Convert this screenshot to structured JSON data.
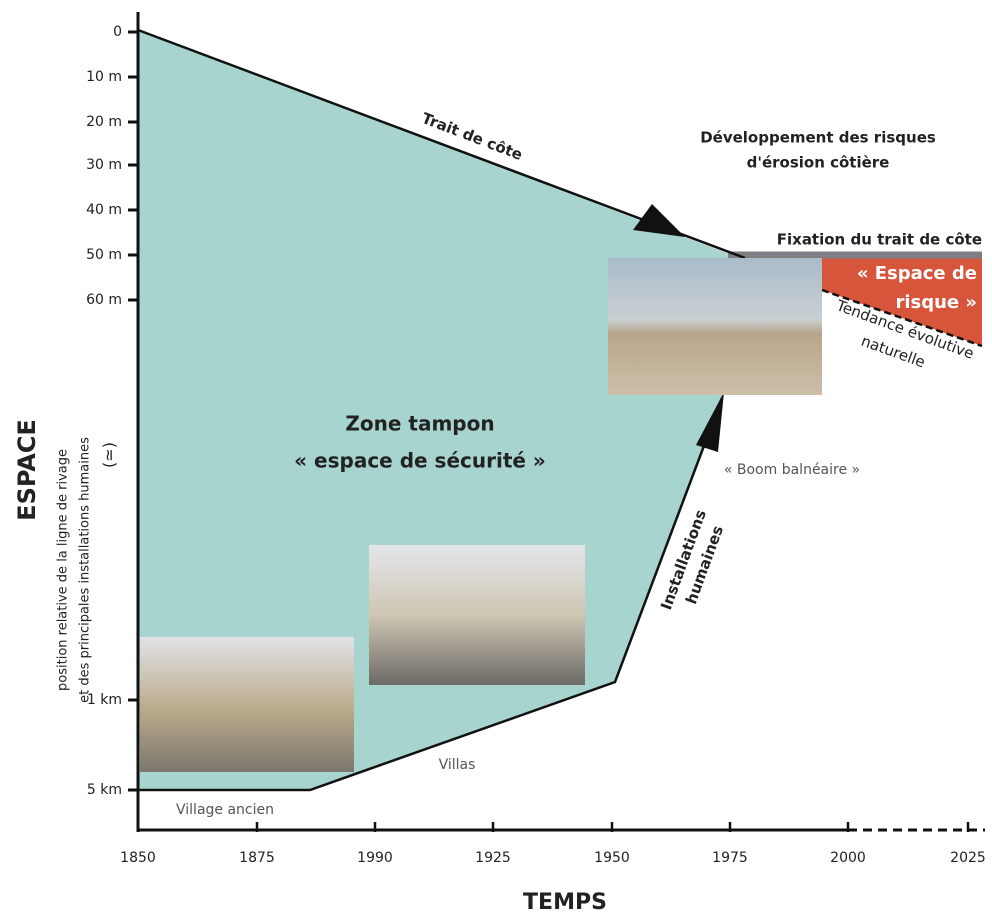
{
  "diagram": {
    "y_axis": {
      "title": "ESPACE",
      "subtitle_lines": [
        "position relative de la ligne de rivage",
        "et des principales installations humaines"
      ],
      "symbol": "(≃)",
      "ticks": [
        "0",
        "10 m",
        "20 m",
        "30 m",
        "40 m",
        "50 m",
        "60 m",
        "1 km",
        "5 km"
      ]
    },
    "x_axis": {
      "title": "TEMPS",
      "ticks": [
        "1850",
        "1875",
        "1990",
        "1925",
        "1950",
        "1975",
        "2000",
        "2025"
      ]
    },
    "annotations": {
      "coastline": "Trait de côte",
      "risk_development": [
        "Développement des risques",
        "d'érosion côtière"
      ],
      "fixation": "Fixation du trait de côte",
      "risk_space": [
        "« Espace de",
        "risque »"
      ],
      "natural_trend": [
        "Tendance évolutive",
        "naturelle"
      ],
      "buffer_zone": [
        "Zone tampon",
        "« espace de sécurité »"
      ],
      "boom": "« Boom balnéaire »",
      "human_installations": [
        "Installations",
        "humaines"
      ],
      "villas": "Villas",
      "old_village": "Village ancien"
    }
  }
}
